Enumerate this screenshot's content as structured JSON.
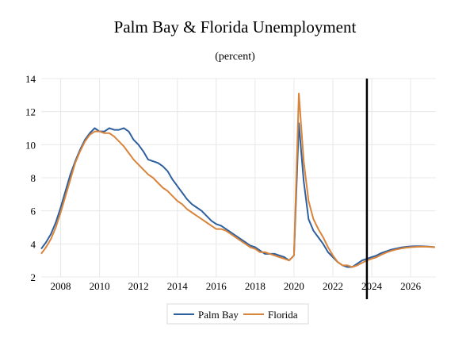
{
  "chart_data": {
    "type": "line",
    "title": "Palm Bay & Florida Unemployment",
    "subtitle": "(percent)",
    "xlabel": "",
    "ylabel": "",
    "xlim": [
      2007.0,
      2027.3
    ],
    "ylim": [
      2,
      14
    ],
    "x_ticks": [
      2008,
      2010,
      2012,
      2014,
      2016,
      2018,
      2020,
      2022,
      2024,
      2026
    ],
    "y_ticks": [
      2,
      4,
      6,
      8,
      10,
      12,
      14
    ],
    "grid": true,
    "legend": "bottom-center",
    "forecast_line_x": 2023.75,
    "colors": {
      "Palm Bay": "#2e5f9e",
      "Florida": "#d9843b",
      "grid": "#e8e8e8",
      "divider": "#000000"
    },
    "series": [
      {
        "name": "Palm Bay",
        "points": [
          [
            2007.0,
            3.7
          ],
          [
            2007.25,
            4.1
          ],
          [
            2007.5,
            4.6
          ],
          [
            2007.75,
            5.3
          ],
          [
            2008.0,
            6.2
          ],
          [
            2008.25,
            7.2
          ],
          [
            2008.5,
            8.2
          ],
          [
            2008.75,
            9.0
          ],
          [
            2009.0,
            9.7
          ],
          [
            2009.25,
            10.3
          ],
          [
            2009.5,
            10.7
          ],
          [
            2009.75,
            11.0
          ],
          [
            2010.0,
            10.8
          ],
          [
            2010.25,
            10.8
          ],
          [
            2010.5,
            11.0
          ],
          [
            2010.75,
            10.9
          ],
          [
            2011.0,
            10.9
          ],
          [
            2011.25,
            11.0
          ],
          [
            2011.5,
            10.8
          ],
          [
            2011.75,
            10.3
          ],
          [
            2012.0,
            10.0
          ],
          [
            2012.25,
            9.6
          ],
          [
            2012.5,
            9.1
          ],
          [
            2012.75,
            9.0
          ],
          [
            2013.0,
            8.9
          ],
          [
            2013.25,
            8.7
          ],
          [
            2013.5,
            8.4
          ],
          [
            2013.75,
            7.9
          ],
          [
            2014.0,
            7.5
          ],
          [
            2014.25,
            7.1
          ],
          [
            2014.5,
            6.7
          ],
          [
            2014.75,
            6.4
          ],
          [
            2015.0,
            6.2
          ],
          [
            2015.25,
            6.0
          ],
          [
            2015.5,
            5.7
          ],
          [
            2015.75,
            5.4
          ],
          [
            2016.0,
            5.2
          ],
          [
            2016.25,
            5.1
          ],
          [
            2016.5,
            4.9
          ],
          [
            2016.75,
            4.7
          ],
          [
            2017.0,
            4.5
          ],
          [
            2017.25,
            4.3
          ],
          [
            2017.5,
            4.1
          ],
          [
            2017.75,
            3.9
          ],
          [
            2018.0,
            3.8
          ],
          [
            2018.25,
            3.6
          ],
          [
            2018.5,
            3.4
          ],
          [
            2018.75,
            3.4
          ],
          [
            2019.0,
            3.4
          ],
          [
            2019.25,
            3.3
          ],
          [
            2019.5,
            3.2
          ],
          [
            2019.75,
            3.0
          ],
          [
            2020.0,
            3.3
          ],
          [
            2020.25,
            11.3
          ],
          [
            2020.5,
            7.8
          ],
          [
            2020.75,
            5.5
          ],
          [
            2021.0,
            4.8
          ],
          [
            2021.25,
            4.4
          ],
          [
            2021.5,
            4.0
          ],
          [
            2021.75,
            3.5
          ],
          [
            2022.0,
            3.2
          ],
          [
            2022.25,
            2.9
          ],
          [
            2022.5,
            2.7
          ],
          [
            2022.75,
            2.6
          ],
          [
            2023.0,
            2.6
          ],
          [
            2023.25,
            2.8
          ],
          [
            2023.5,
            3.0
          ],
          [
            2023.75,
            3.1
          ],
          [
            2024.0,
            3.2
          ],
          [
            2024.25,
            3.3
          ],
          [
            2024.5,
            3.45
          ],
          [
            2024.75,
            3.55
          ],
          [
            2025.0,
            3.65
          ],
          [
            2025.25,
            3.72
          ],
          [
            2025.5,
            3.78
          ],
          [
            2025.75,
            3.82
          ],
          [
            2026.0,
            3.85
          ],
          [
            2026.25,
            3.86
          ],
          [
            2026.5,
            3.86
          ],
          [
            2026.75,
            3.85
          ],
          [
            2027.0,
            3.83
          ],
          [
            2027.25,
            3.8
          ]
        ]
      },
      {
        "name": "Florida",
        "points": [
          [
            2007.0,
            3.4
          ],
          [
            2007.25,
            3.8
          ],
          [
            2007.5,
            4.3
          ],
          [
            2007.75,
            5.0
          ],
          [
            2008.0,
            5.9
          ],
          [
            2008.25,
            6.9
          ],
          [
            2008.5,
            7.9
          ],
          [
            2008.75,
            8.9
          ],
          [
            2009.0,
            9.6
          ],
          [
            2009.25,
            10.2
          ],
          [
            2009.5,
            10.6
          ],
          [
            2009.75,
            10.8
          ],
          [
            2010.0,
            10.8
          ],
          [
            2010.25,
            10.7
          ],
          [
            2010.5,
            10.7
          ],
          [
            2010.75,
            10.5
          ],
          [
            2011.0,
            10.2
          ],
          [
            2011.25,
            9.9
          ],
          [
            2011.5,
            9.5
          ],
          [
            2011.75,
            9.1
          ],
          [
            2012.0,
            8.8
          ],
          [
            2012.25,
            8.5
          ],
          [
            2012.5,
            8.2
          ],
          [
            2012.75,
            8.0
          ],
          [
            2013.0,
            7.7
          ],
          [
            2013.25,
            7.4
          ],
          [
            2013.5,
            7.2
          ],
          [
            2013.75,
            6.9
          ],
          [
            2014.0,
            6.6
          ],
          [
            2014.25,
            6.4
          ],
          [
            2014.5,
            6.1
          ],
          [
            2014.75,
            5.9
          ],
          [
            2015.0,
            5.7
          ],
          [
            2015.25,
            5.5
          ],
          [
            2015.5,
            5.3
          ],
          [
            2015.75,
            5.1
          ],
          [
            2016.0,
            4.9
          ],
          [
            2016.25,
            4.9
          ],
          [
            2016.5,
            4.8
          ],
          [
            2016.75,
            4.6
          ],
          [
            2017.0,
            4.4
          ],
          [
            2017.25,
            4.2
          ],
          [
            2017.5,
            4.0
          ],
          [
            2017.75,
            3.8
          ],
          [
            2018.0,
            3.7
          ],
          [
            2018.25,
            3.5
          ],
          [
            2018.5,
            3.5
          ],
          [
            2018.75,
            3.4
          ],
          [
            2019.0,
            3.3
          ],
          [
            2019.25,
            3.2
          ],
          [
            2019.5,
            3.1
          ],
          [
            2019.75,
            3.0
          ],
          [
            2020.0,
            3.3
          ],
          [
            2020.25,
            13.1
          ],
          [
            2020.5,
            9.0
          ],
          [
            2020.75,
            6.6
          ],
          [
            2021.0,
            5.5
          ],
          [
            2021.25,
            4.9
          ],
          [
            2021.5,
            4.4
          ],
          [
            2021.75,
            3.8
          ],
          [
            2022.0,
            3.3
          ],
          [
            2022.25,
            2.9
          ],
          [
            2022.5,
            2.7
          ],
          [
            2022.75,
            2.7
          ],
          [
            2023.0,
            2.6
          ],
          [
            2023.25,
            2.7
          ],
          [
            2023.5,
            2.85
          ],
          [
            2023.75,
            3.0
          ],
          [
            2024.0,
            3.1
          ],
          [
            2024.25,
            3.2
          ],
          [
            2024.5,
            3.35
          ],
          [
            2024.75,
            3.48
          ],
          [
            2025.0,
            3.58
          ],
          [
            2025.25,
            3.66
          ],
          [
            2025.5,
            3.72
          ],
          [
            2025.75,
            3.77
          ],
          [
            2026.0,
            3.8
          ],
          [
            2026.25,
            3.82
          ],
          [
            2026.5,
            3.83
          ],
          [
            2026.75,
            3.83
          ],
          [
            2027.0,
            3.82
          ],
          [
            2027.25,
            3.8
          ]
        ]
      }
    ]
  }
}
